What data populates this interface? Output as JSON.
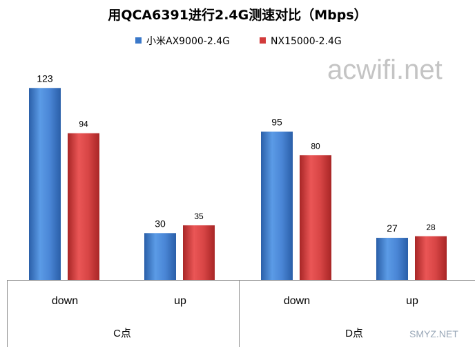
{
  "chart_data": {
    "type": "bar",
    "title": "用QCA6391进行2.4G测速对比（Mbps）",
    "categories": [
      "down",
      "up",
      "down",
      "up"
    ],
    "groups": [
      {
        "label": "C点",
        "categories": [
          "down",
          "up"
        ]
      },
      {
        "label": "D点",
        "categories": [
          "down",
          "up"
        ]
      }
    ],
    "series": [
      {
        "name": "小米AX9000-2.4G",
        "color": "#3A78C9",
        "values": [
          123,
          30,
          95,
          27
        ]
      },
      {
        "name": "NX15000-2.4G",
        "color": "#D23B3B",
        "values": [
          94,
          35,
          80,
          28
        ]
      }
    ],
    "ylim": [
      0,
      140
    ],
    "grid": false,
    "legend_position": "top"
  },
  "watermarks": {
    "main": "acwifi.net",
    "corner": "SMYZ.NET"
  },
  "colors": {
    "axis": "#8c8c8c",
    "text": "#000000",
    "watermark": "#c8c8c8"
  }
}
